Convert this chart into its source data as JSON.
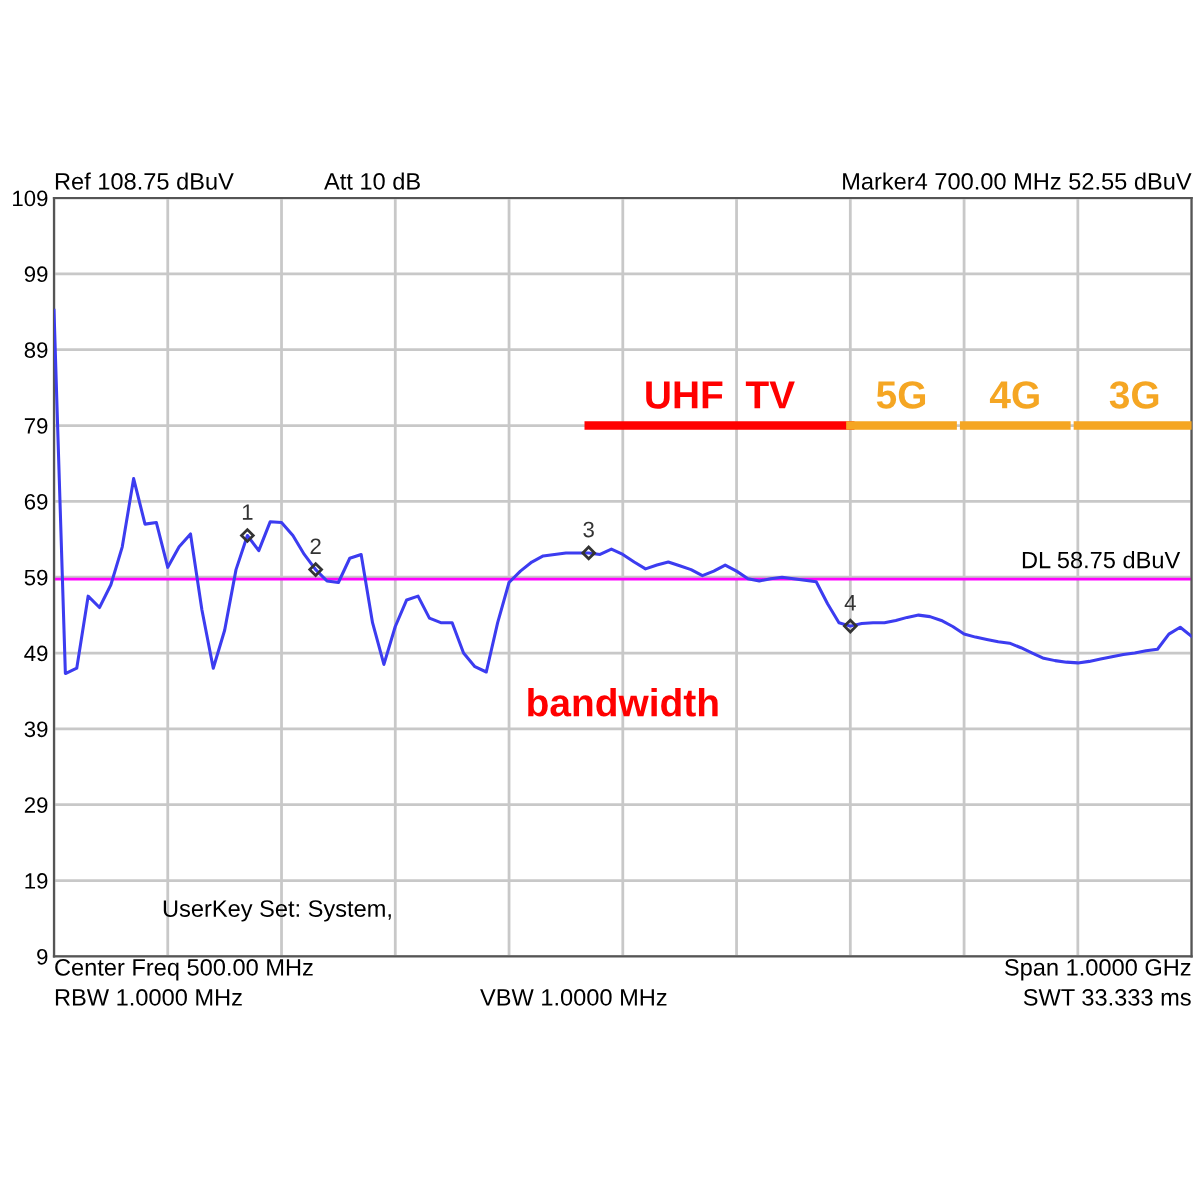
{
  "chart_data": {
    "type": "line",
    "title": "bandwidth",
    "categories": [
      null,
      null,
      null,
      null,
      null,
      null,
      null,
      null,
      null,
      null,
      null,
      null,
      null,
      null,
      null,
      null,
      null,
      null,
      null,
      null,
      null,
      null,
      null,
      null,
      null,
      null,
      null,
      null,
      null,
      null,
      null,
      null,
      null,
      null,
      null,
      null,
      null,
      null,
      null,
      null,
      null,
      null,
      null,
      null,
      null,
      null,
      null,
      null,
      null,
      null,
      null,
      null,
      null,
      null,
      null,
      null,
      null,
      null,
      null,
      null,
      null,
      null,
      null,
      null,
      null,
      null,
      null,
      null,
      null,
      null,
      null,
      null,
      null,
      null,
      null,
      null,
      null,
      null,
      null,
      null,
      null,
      null,
      null,
      null,
      null,
      null,
      null,
      null,
      null,
      null,
      null,
      null,
      null,
      null,
      null,
      null,
      null,
      null,
      null,
      null,
      null
    ],
    "ylim": [
      9,
      109
    ],
    "yticks": [
      9,
      19,
      29,
      39,
      49,
      59,
      69,
      79,
      89,
      99,
      109
    ],
    "tick_labels": "y",
    "grid": true,
    "line_style": "solid",
    "series": [
      {
        "color": "#3c3cf0",
        "values": [
          94.2,
          46.3,
          47,
          56.5,
          55,
          58,
          63,
          72,
          66,
          66.2,
          60.3,
          63,
          64.7,
          54.7,
          47,
          52,
          60,
          64.5,
          62.5,
          66.3,
          66.2,
          64.5,
          62,
          60,
          58.5,
          58.3,
          61.5,
          62,
          53,
          47.5,
          52.5,
          56,
          56.5,
          53.6,
          53,
          53,
          49,
          47.2,
          46.5,
          53,
          58.3,
          59.8,
          61,
          61.8,
          62,
          62.2,
          62.2,
          62.2,
          62,
          62.7,
          62,
          61,
          60.1,
          60.6,
          61,
          60.5,
          60,
          59.2,
          59.8,
          60.6,
          59.8,
          58.8,
          58.5,
          58.8,
          59,
          58.8,
          58.6,
          58.4,
          55.5,
          53,
          52.55,
          52.9,
          53,
          53,
          53.3,
          53.7,
          54,
          53.8,
          53.3,
          52.5,
          51.5,
          51.1,
          50.8,
          50.5,
          50.3,
          49.7,
          49,
          48.3,
          48,
          47.8,
          47.7,
          47.9,
          48.2,
          48.5,
          48.8,
          49,
          49.3,
          49.5,
          51.5,
          52.4,
          51.2
        ],
        "type": "line"
      },
      {
        "name": "1",
        "type": "scatter",
        "color": "#333333",
        "values": [
          null,
          null,
          null,
          null,
          null,
          null,
          null,
          null,
          null,
          null,
          null,
          null,
          null,
          null,
          null,
          null,
          null,
          64.5,
          null,
          null,
          null,
          null,
          null,
          null,
          null,
          null,
          null,
          null,
          null,
          null,
          null,
          null,
          null,
          null,
          null,
          null,
          null,
          null,
          null,
          null,
          null,
          null,
          null,
          null,
          null,
          null,
          null,
          null,
          null,
          null,
          null,
          null,
          null,
          null,
          null,
          null,
          null,
          null,
          null,
          null,
          null,
          null,
          null,
          null,
          null,
          null,
          null,
          null,
          null,
          null,
          null,
          null,
          null,
          null,
          null,
          null,
          null,
          null,
          null,
          null,
          null,
          null,
          null,
          null,
          null,
          null,
          null,
          null,
          null,
          null,
          null,
          null,
          null,
          null,
          null,
          null,
          null,
          null,
          null,
          null,
          null
        ]
      },
      {
        "name": "2",
        "type": "scatter",
        "color": "#333333",
        "values": [
          null,
          null,
          null,
          null,
          null,
          null,
          null,
          null,
          null,
          null,
          null,
          null,
          null,
          null,
          null,
          null,
          null,
          null,
          null,
          null,
          null,
          null,
          null,
          60,
          null,
          null,
          null,
          null,
          null,
          null,
          null,
          null,
          null,
          null,
          null,
          null,
          null,
          null,
          null,
          null,
          null,
          null,
          null,
          null,
          null,
          null,
          null,
          null,
          null,
          null,
          null,
          null,
          null,
          null,
          null,
          null,
          null,
          null,
          null,
          null,
          null,
          null,
          null,
          null,
          null,
          null,
          null,
          null,
          null,
          null,
          null,
          null,
          null,
          null,
          null,
          null,
          null,
          null,
          null,
          null,
          null,
          null,
          null,
          null,
          null,
          null,
          null,
          null,
          null,
          null,
          null,
          null,
          null,
          null,
          null,
          null,
          null,
          null,
          null,
          null,
          null
        ]
      },
      {
        "name": "3",
        "type": "scatter",
        "color": "#333333",
        "values": [
          null,
          null,
          null,
          null,
          null,
          null,
          null,
          null,
          null,
          null,
          null,
          null,
          null,
          null,
          null,
          null,
          null,
          null,
          null,
          null,
          null,
          null,
          null,
          null,
          null,
          null,
          null,
          null,
          null,
          null,
          null,
          null,
          null,
          null,
          null,
          null,
          null,
          null,
          null,
          null,
          null,
          null,
          null,
          null,
          null,
          null,
          null,
          62.2,
          null,
          null,
          null,
          null,
          null,
          null,
          null,
          null,
          null,
          null,
          null,
          null,
          null,
          null,
          null,
          null,
          null,
          null,
          null,
          null,
          null,
          null,
          null,
          null,
          null,
          null,
          null,
          null,
          null,
          null,
          null,
          null,
          null,
          null,
          null,
          null,
          null,
          null,
          null,
          null,
          null,
          null,
          null,
          null,
          null,
          null,
          null,
          null,
          null,
          null,
          null,
          null,
          null
        ]
      },
      {
        "name": "4",
        "type": "scatter",
        "color": "#333333",
        "values": [
          null,
          null,
          null,
          null,
          null,
          null,
          null,
          null,
          null,
          null,
          null,
          null,
          null,
          null,
          null,
          null,
          null,
          null,
          null,
          null,
          null,
          null,
          null,
          null,
          null,
          null,
          null,
          null,
          null,
          null,
          null,
          null,
          null,
          null,
          null,
          null,
          null,
          null,
          null,
          null,
          null,
          null,
          null,
          null,
          null,
          null,
          null,
          null,
          null,
          null,
          null,
          null,
          null,
          null,
          null,
          null,
          null,
          null,
          null,
          null,
          null,
          null,
          null,
          null,
          null,
          null,
          null,
          null,
          null,
          null,
          52.55,
          null,
          null,
          null,
          null,
          null,
          null,
          null,
          null,
          null,
          null,
          null,
          null,
          null,
          null,
          null,
          null,
          null,
          null,
          null,
          null,
          null,
          null,
          null,
          null,
          null,
          null,
          null,
          null,
          null,
          null
        ]
      },
      {
        "name": "UHF  TV",
        "color": "#ff0000",
        "values": [
          null,
          null,
          null,
          null,
          null,
          null,
          null,
          null,
          null,
          null,
          null,
          null,
          null,
          null,
          null,
          null,
          null,
          null,
          null,
          null,
          null,
          null,
          null,
          null,
          null,
          null,
          null,
          null,
          null,
          null,
          null,
          null,
          null,
          null,
          null,
          null,
          null,
          null,
          null,
          null,
          null,
          null,
          null,
          null,
          null,
          null,
          null,
          79,
          79,
          79,
          79,
          79,
          79,
          79,
          79,
          79,
          79,
          79,
          79,
          79,
          79,
          79,
          79,
          79,
          79,
          79,
          79,
          79,
          79,
          79,
          79,
          null,
          null,
          null,
          null,
          null,
          null,
          null,
          null,
          null,
          null,
          null,
          null,
          null,
          null,
          null,
          null,
          null,
          null,
          null,
          null,
          null,
          null,
          null,
          null,
          null,
          null,
          null,
          null,
          null,
          null
        ]
      },
      {
        "name": "5G",
        "color": "#f5a623",
        "values": [
          null,
          null,
          null,
          null,
          null,
          null,
          null,
          null,
          null,
          null,
          null,
          null,
          null,
          null,
          null,
          null,
          null,
          null,
          null,
          null,
          null,
          null,
          null,
          null,
          null,
          null,
          null,
          null,
          null,
          null,
          null,
          null,
          null,
          null,
          null,
          null,
          null,
          null,
          null,
          null,
          null,
          null,
          null,
          null,
          null,
          null,
          null,
          null,
          null,
          null,
          null,
          null,
          null,
          null,
          null,
          null,
          null,
          null,
          null,
          null,
          null,
          null,
          null,
          null,
          null,
          null,
          null,
          null,
          null,
          null,
          79,
          79,
          79,
          79,
          79,
          79,
          79,
          79,
          79,
          79,
          null,
          null,
          null,
          null,
          null,
          null,
          null,
          null,
          null,
          null,
          null,
          null,
          null,
          null,
          null,
          null,
          null,
          null,
          null,
          null,
          null
        ]
      },
      {
        "name": "4G",
        "color": "#f5a623",
        "values": [
          null,
          null,
          null,
          null,
          null,
          null,
          null,
          null,
          null,
          null,
          null,
          null,
          null,
          null,
          null,
          null,
          null,
          null,
          null,
          null,
          null,
          null,
          null,
          null,
          null,
          null,
          null,
          null,
          null,
          null,
          null,
          null,
          null,
          null,
          null,
          null,
          null,
          null,
          null,
          null,
          null,
          null,
          null,
          null,
          null,
          null,
          null,
          null,
          null,
          null,
          null,
          null,
          null,
          null,
          null,
          null,
          null,
          null,
          null,
          null,
          null,
          null,
          null,
          null,
          null,
          null,
          null,
          null,
          null,
          null,
          null,
          null,
          null,
          null,
          null,
          null,
          null,
          null,
          null,
          null,
          79,
          79,
          79,
          79,
          79,
          79,
          79,
          79,
          79,
          79,
          null,
          null,
          null,
          null,
          null,
          null,
          null,
          null,
          null,
          null,
          null
        ]
      },
      {
        "name": "3G",
        "color": "#f5a623",
        "values": [
          null,
          null,
          null,
          null,
          null,
          null,
          null,
          null,
          null,
          null,
          null,
          null,
          null,
          null,
          null,
          null,
          null,
          null,
          null,
          null,
          null,
          null,
          null,
          null,
          null,
          null,
          null,
          null,
          null,
          null,
          null,
          null,
          null,
          null,
          null,
          null,
          null,
          null,
          null,
          null,
          null,
          null,
          null,
          null,
          null,
          null,
          null,
          null,
          null,
          null,
          null,
          null,
          null,
          null,
          null,
          null,
          null,
          null,
          null,
          null,
          null,
          null,
          null,
          null,
          null,
          null,
          null,
          null,
          null,
          null,
          null,
          null,
          null,
          null,
          null,
          null,
          null,
          null,
          null,
          null,
          null,
          null,
          null,
          null,
          null,
          null,
          null,
          null,
          null,
          null,
          79,
          79,
          79,
          79,
          79,
          79,
          79,
          79,
          79,
          79,
          79
        ]
      }
    ],
    "ref_lines": [
      {
        "axis": "y",
        "value": 58.75,
        "label": "DL 58.75 dBuV",
        "color": "#ff00ff"
      }
    ],
    "annotations": [
      "Ref 108.75 dBuV",
      "Att 10 dB",
      "Marker4 700.00 MHz 52.55 dBuV",
      "UserKey Set: System,",
      "Center Freq 500.00 MHz",
      "Span 1.0000 GHz",
      "RBW 1.0000 MHz",
      "VBW 1.0000 MHz",
      "SWT 33.333 ms"
    ]
  }
}
